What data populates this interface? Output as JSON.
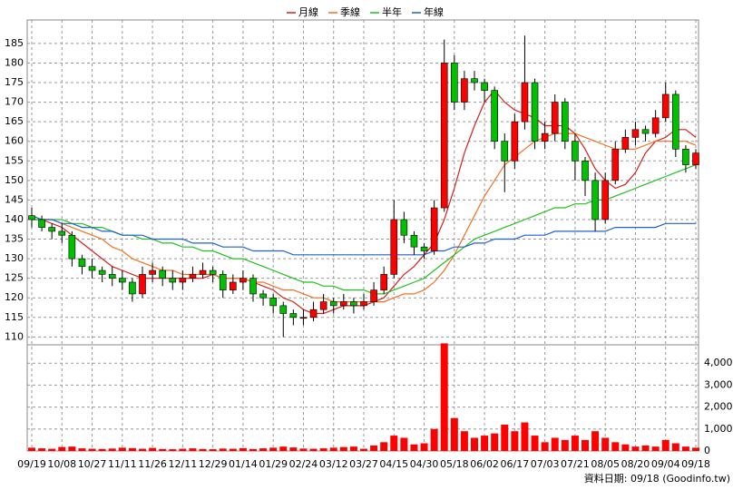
{
  "chart_data": {
    "type": "candlestick",
    "legend": "top",
    "grid": true,
    "footer": "資料日期: 09/18 (Goodinfo.tw)",
    "categories": [
      "09/19",
      null,
      null,
      "10/08",
      null,
      null,
      "10/27",
      null,
      null,
      "11/11",
      null,
      null,
      "11/26",
      null,
      null,
      "12/11",
      null,
      null,
      "12/29",
      null,
      null,
      "01/14",
      null,
      null,
      "01/29",
      null,
      null,
      "02/24",
      null,
      null,
      "03/12",
      null,
      null,
      "03/27",
      null,
      null,
      "04/15",
      null,
      null,
      "04/30",
      null,
      null,
      "05/18",
      null,
      null,
      "06/02",
      null,
      null,
      "06/17",
      null,
      null,
      "07/03",
      null,
      null,
      "07/21",
      null,
      null,
      "08/05",
      null,
      null,
      "08/20",
      null,
      null,
      "09/04",
      null,
      null,
      "09/18"
    ],
    "up_color": "#ff0000",
    "down_color": "#00c000",
    "ylim": [
      108,
      191
    ],
    "yticks": [
      110,
      115,
      120,
      125,
      130,
      135,
      140,
      145,
      150,
      155,
      160,
      165,
      170,
      175,
      180,
      185
    ],
    "ohlc": {
      "open": [
        141,
        140,
        138,
        137,
        136,
        130,
        128,
        127,
        126,
        125,
        124,
        121,
        126,
        127,
        125,
        124,
        125,
        126,
        127,
        126,
        122,
        124,
        125,
        121,
        120,
        118,
        116,
        115,
        115,
        117,
        119,
        118,
        119,
        118,
        119,
        122,
        126,
        140,
        136,
        133,
        132,
        143,
        180,
        170,
        176,
        175,
        173,
        160,
        155,
        165,
        175,
        160,
        162,
        170,
        160,
        155,
        150,
        140,
        150,
        158,
        161,
        163,
        162,
        166,
        172,
        158,
        154
      ],
      "high": [
        143,
        141,
        139,
        139,
        137,
        131,
        130,
        128,
        128,
        127,
        125,
        128,
        129,
        128,
        127,
        127,
        128,
        129,
        128,
        127,
        126,
        127,
        126,
        122,
        121,
        119,
        117,
        117,
        119,
        121,
        120,
        121,
        120,
        121,
        124,
        128,
        145,
        142,
        137,
        134,
        145,
        186,
        182,
        178,
        178,
        176,
        174,
        162,
        167,
        187,
        176,
        165,
        172,
        171,
        162,
        156,
        152,
        152,
        160,
        163,
        165,
        164,
        168,
        175,
        173,
        159,
        158
      ],
      "low": [
        138,
        137,
        135,
        134,
        128,
        126,
        125,
        124,
        123,
        122,
        119,
        120,
        124,
        123,
        122,
        122,
        124,
        125,
        124,
        120,
        121,
        122,
        119,
        118,
        116,
        110,
        113,
        113,
        114,
        116,
        116,
        117,
        116,
        117,
        118,
        121,
        125,
        134,
        131,
        130,
        131,
        142,
        168,
        168,
        173,
        170,
        158,
        147,
        153,
        163,
        158,
        158,
        160,
        158,
        150,
        146,
        137,
        139,
        149,
        157,
        159,
        160,
        161,
        165,
        156,
        152,
        153
      ],
      "close": [
        140,
        138,
        137,
        136,
        130,
        128,
        127,
        126,
        125,
        124,
        121,
        126,
        127,
        125,
        124,
        125,
        126,
        127,
        126,
        122,
        124,
        125,
        121,
        120,
        118,
        116,
        115,
        115,
        117,
        119,
        118,
        119,
        118,
        119,
        122,
        126,
        140,
        136,
        133,
        132,
        143,
        180,
        170,
        176,
        175,
        173,
        160,
        155,
        165,
        175,
        160,
        162,
        170,
        160,
        155,
        150,
        140,
        150,
        158,
        161,
        163,
        162,
        166,
        172,
        158,
        154,
        157
      ]
    },
    "series": [
      {
        "name": "月線",
        "color": "#d42020",
        "values": [
          140,
          140,
          139,
          138,
          136,
          134,
          132,
          130,
          128,
          127,
          126,
          125,
          125,
          125,
          125,
          125,
          125,
          125,
          126,
          125,
          125,
          125,
          124,
          123,
          122,
          120,
          119,
          117,
          116,
          116,
          117,
          118,
          118,
          118,
          119,
          120,
          123,
          126,
          128,
          131,
          134,
          140,
          148,
          157,
          164,
          170,
          173,
          170,
          168,
          167,
          166,
          164,
          164,
          164,
          162,
          158,
          153,
          150,
          148,
          149,
          152,
          157,
          160,
          161,
          163,
          163,
          161
        ]
      },
      {
        "name": "季線",
        "color": "#f07020",
        "values": [
          141,
          140,
          140,
          139,
          138,
          137,
          136,
          135,
          133,
          132,
          130,
          129,
          128,
          127,
          127,
          126,
          126,
          126,
          126,
          125,
          125,
          125,
          124,
          124,
          123,
          122,
          122,
          121,
          120,
          120,
          119,
          119,
          119,
          119,
          119,
          119,
          120,
          121,
          121,
          122,
          124,
          127,
          131,
          136,
          141,
          146,
          150,
          154,
          156,
          158,
          160,
          161,
          162,
          162,
          162,
          161,
          160,
          159,
          158,
          158,
          158,
          159,
          160,
          160,
          160,
          160,
          159
        ]
      },
      {
        "name": "半年",
        "color": "#20c020",
        "values": [
          140,
          140,
          140,
          140,
          139,
          139,
          138,
          138,
          137,
          136,
          136,
          135,
          135,
          134,
          134,
          133,
          133,
          132,
          132,
          131,
          130,
          130,
          129,
          128,
          127,
          126,
          125,
          124,
          124,
          123,
          123,
          122,
          122,
          122,
          121,
          121,
          122,
          123,
          124,
          125,
          127,
          129,
          131,
          133,
          135,
          136,
          137,
          138,
          139,
          140,
          141,
          142,
          143,
          143,
          144,
          144,
          145,
          145,
          146,
          147,
          148,
          149,
          150,
          151,
          152,
          153,
          154
        ]
      },
      {
        "name": "年線",
        "color": "#2060d0",
        "values": [
          141,
          140,
          140,
          139,
          139,
          138,
          138,
          137,
          137,
          136,
          136,
          136,
          135,
          135,
          135,
          135,
          134,
          134,
          134,
          133,
          133,
          133,
          132,
          132,
          132,
          132,
          131,
          131,
          131,
          131,
          131,
          131,
          131,
          131,
          131,
          131,
          131,
          131,
          131,
          131,
          132,
          132,
          133,
          133,
          134,
          134,
          135,
          135,
          135,
          136,
          136,
          136,
          137,
          137,
          137,
          137,
          137,
          137,
          138,
          138,
          138,
          138,
          138,
          139,
          139,
          139,
          139
        ]
      }
    ],
    "volume": {
      "color": "#ff0000",
      "ylim": [
        0,
        5000
      ],
      "yticks": [
        0,
        {
          "value": 1000,
          "label": "1,000"
        },
        {
          "value": 2000,
          "label": "2,000"
        },
        {
          "value": 3000,
          "label": "3,000"
        },
        {
          "value": 4000,
          "label": "4,000"
        }
      ],
      "values": [
        150,
        120,
        100,
        180,
        200,
        120,
        100,
        90,
        110,
        150,
        130,
        100,
        140,
        90,
        80,
        100,
        120,
        90,
        80,
        110,
        100,
        130,
        90,
        120,
        150,
        200,
        160,
        110,
        100,
        120,
        150,
        180,
        200,
        100,
        250,
        400,
        700,
        600,
        300,
        350,
        1000,
        4900,
        1500,
        900,
        600,
        700,
        800,
        1200,
        900,
        1300,
        700,
        400,
        600,
        500,
        700,
        500,
        900,
        600,
        400,
        300,
        200,
        250,
        200,
        500,
        350,
        200,
        150
      ]
    }
  }
}
